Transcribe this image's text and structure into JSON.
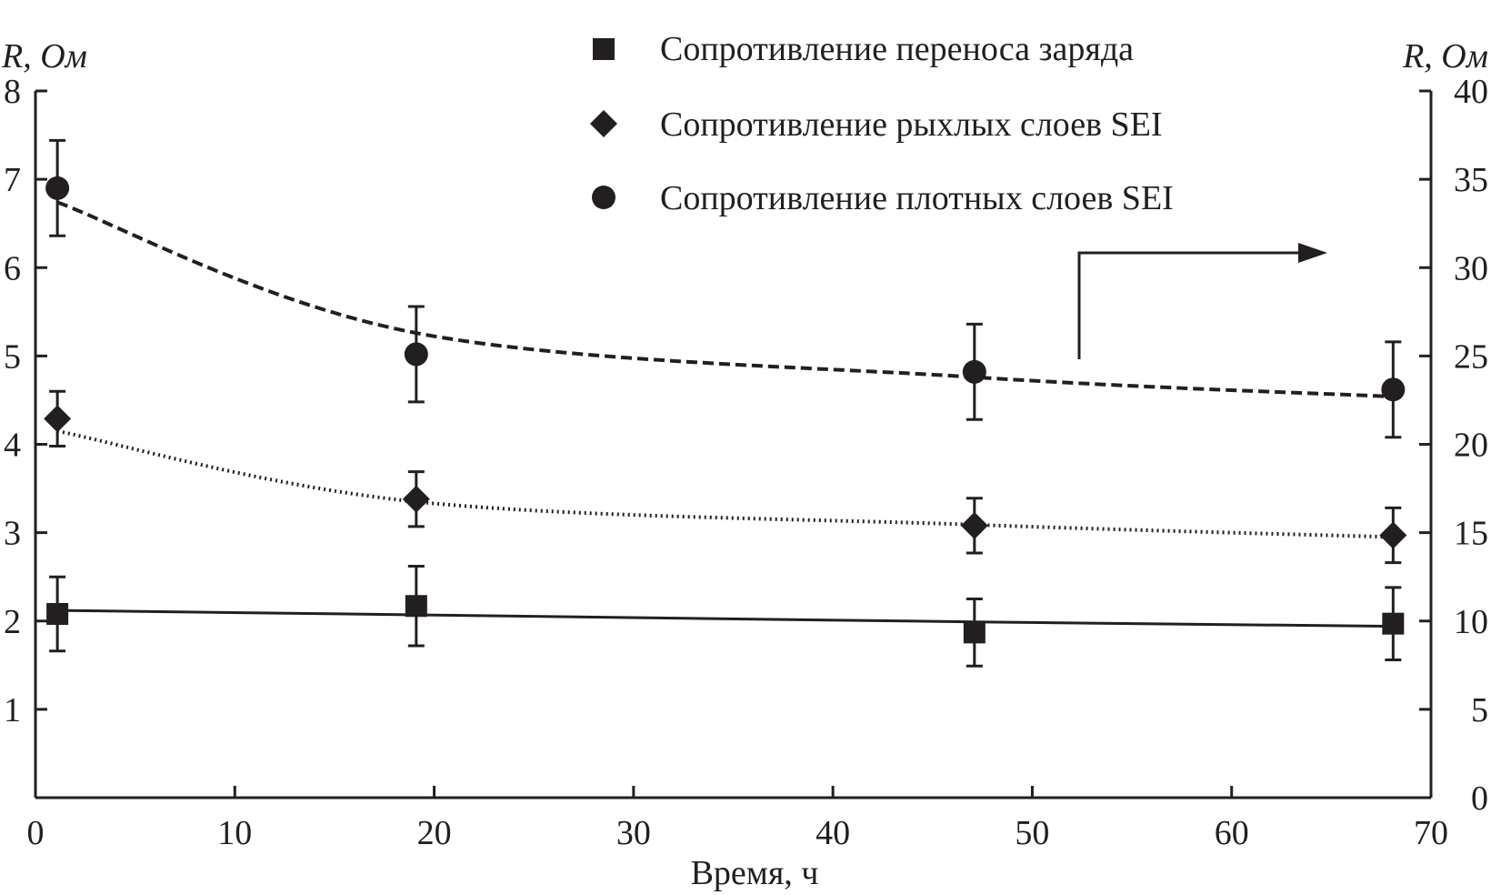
{
  "chart_data": {
    "type": "scatter",
    "xlabel": "Время, ч",
    "ylabel_left": "R, Ом",
    "ylabel_right": "R, Ом",
    "xlim": [
      0,
      70
    ],
    "ylim_left": [
      0,
      8
    ],
    "ylim_right": [
      0,
      40
    ],
    "xticks": [
      0,
      10,
      20,
      30,
      40,
      50,
      60,
      70
    ],
    "yticks_left": [
      1,
      2,
      3,
      4,
      5,
      6,
      7,
      8
    ],
    "yticks_right": [
      0,
      5,
      10,
      15,
      20,
      25,
      30,
      35,
      40
    ],
    "grid": false,
    "legend_position": "top-right",
    "colors": {
      "ink": "#231f20"
    },
    "series": [
      {
        "name": "Сопротивление переноса заряда",
        "marker": "square",
        "axis": "left",
        "fit": "solid",
        "x": [
          1.1,
          19.1,
          47.1,
          68.1
        ],
        "y": [
          2.08,
          2.17,
          1.87,
          1.97
        ],
        "err": [
          0.42,
          0.45,
          0.38,
          0.41
        ],
        "fit_y": [
          2.12,
          2.07,
          1.99,
          1.94
        ]
      },
      {
        "name": "Сопротивление рыхлых слоев SEI",
        "marker": "diamond",
        "axis": "left",
        "fit": "dotted",
        "x": [
          1.1,
          19.1,
          47.1,
          68.1
        ],
        "y": [
          4.29,
          3.38,
          3.08,
          2.97
        ],
        "err": [
          0.31,
          0.31,
          0.31,
          0.31
        ],
        "fit_y": [
          4.15,
          3.35,
          3.09,
          2.95
        ]
      },
      {
        "name": "Сопротивление плотных слоев SEI",
        "marker": "circle",
        "axis": "right",
        "fit": "dashed",
        "x": [
          1.1,
          19.1,
          47.1,
          68.1
        ],
        "y": [
          34.5,
          25.1,
          24.1,
          23.1
        ],
        "err": [
          2.7,
          2.7,
          2.7,
          2.7
        ],
        "fit_y": [
          33.7,
          26.3,
          23.8,
          22.7
        ]
      }
    ]
  }
}
